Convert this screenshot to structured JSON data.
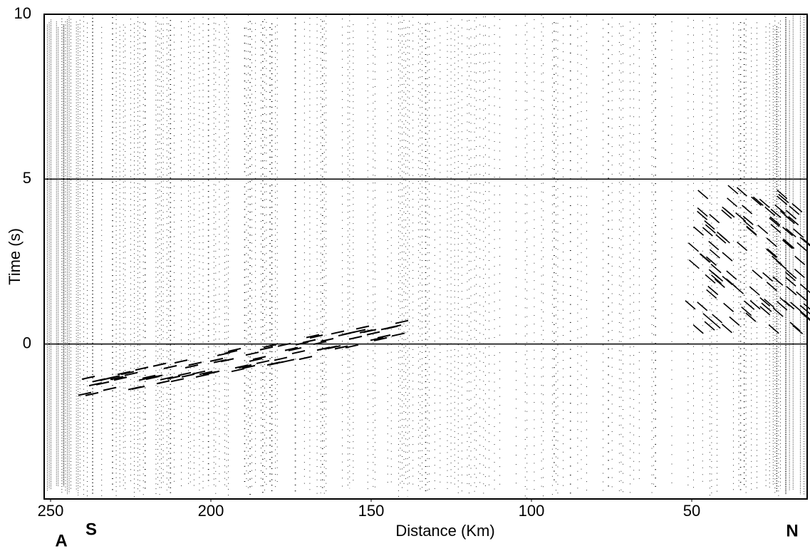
{
  "chart_data": {
    "type": "record-section",
    "xlabel": "Distance (Km)",
    "ylabel": "Time (s)",
    "xlim": [
      252,
      14
    ],
    "ylim": [
      -4.7,
      10
    ],
    "xticks": [
      250,
      200,
      150,
      100,
      50
    ],
    "yticks": [
      0,
      5,
      10
    ],
    "grid": true,
    "color": "#000000",
    "annotations": [
      "A",
      "S",
      "N"
    ]
  }
}
